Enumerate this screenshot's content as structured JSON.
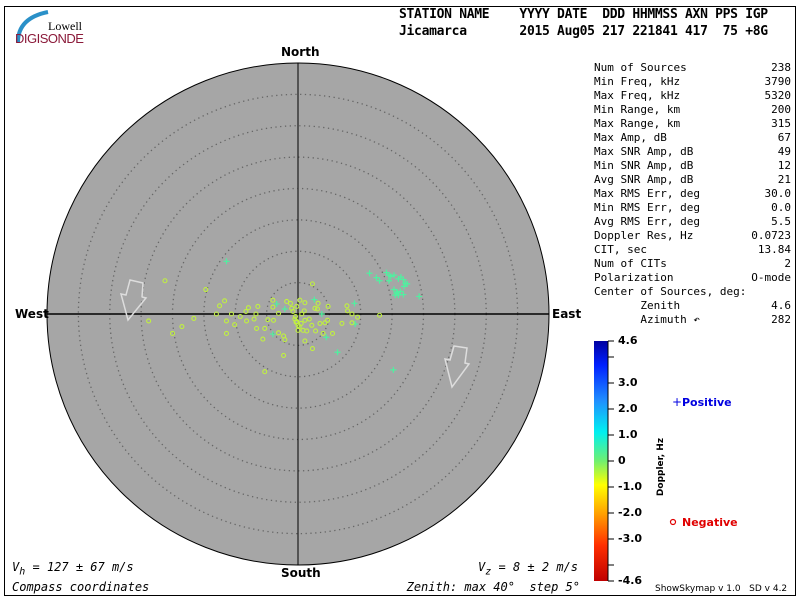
{
  "logo": {
    "line1": "Lowell",
    "line2": "DIGISONDE"
  },
  "header": {
    "columns": "STATION NAME    YYYY DATE  DDD HHMMSS AXN PPS IGP",
    "values": "Jicamarca       2015 Aug05 217 221841 417  75 +8G"
  },
  "stats": [
    {
      "label": "Num of Sources",
      "value": "238"
    },
    {
      "label": "Min Freq, kHz",
      "value": "3790"
    },
    {
      "label": "Max Freq, kHz",
      "value": "5320"
    },
    {
      "label": "Min Range, km",
      "value": "200"
    },
    {
      "label": "Max Range, km",
      "value": "315"
    },
    {
      "label": "Max Amp, dB",
      "value": "67"
    },
    {
      "label": "Max SNR Amp, dB",
      "value": "49"
    },
    {
      "label": "Min SNR Amp, dB",
      "value": "12"
    },
    {
      "label": "Avg SNR Amp, dB",
      "value": "21"
    },
    {
      "label": "Max RMS Err, deg",
      "value": "30.0"
    },
    {
      "label": "Min RMS Err, deg",
      "value": "0.0"
    },
    {
      "label": "Avg RMS Err, deg",
      "value": "5.5"
    },
    {
      "label": "Doppler Res, Hz",
      "value": "0.0723"
    },
    {
      "label": "CIT, sec",
      "value": "13.84"
    },
    {
      "label": "Num of CITs",
      "value": "2"
    },
    {
      "label": "Polarization",
      "value": "O-mode"
    },
    {
      "label": "Center of Sources, deg:",
      "value": ""
    },
    {
      "label": "       Zenith",
      "value": "4.6"
    },
    {
      "label": "       Azimuth ↶",
      "value": "282"
    }
  ],
  "compass": {
    "north": "North",
    "south": "South",
    "west": "West",
    "east": "East"
  },
  "footer": {
    "vh": "V",
    "vh_sub": "h",
    "vh_value": " = 127 ± 67 m/s",
    "vz": "V",
    "vz_sub": "z",
    "vz_value": " = 8 ± 2 m/s",
    "coords": "Compass coordinates",
    "zenith": "Zenith: max 40°  step 5°",
    "version": "ShowSkymap v 1.0   SD v 4.2"
  },
  "colorbar": {
    "label": "Doppler, Hz",
    "ticks": [
      "4.6",
      "3.0",
      "2.0",
      "1.0",
      "0",
      "-1.0",
      "-2.0",
      "-3.0",
      "-4.6"
    ],
    "range": [
      -4.6,
      4.6
    ]
  },
  "legend": {
    "positive": "Positive",
    "negative": "Negative",
    "positive_symbol": "+",
    "negative_symbol": "o"
  },
  "colors": {
    "plot_bg": "#a6a6a6",
    "positive_points": "#50f0a0",
    "negative_points": "#c0f040",
    "positive_text": "#0000e0",
    "negative_text": "#e00000",
    "logo_text": "#8b1a3a",
    "logo_arc": "#2a90c8"
  },
  "chart_data": {
    "type": "scatter",
    "coordinate_system": "polar skymap, compass coordinates (x = east, y = north, degrees from zenith)",
    "zenith_max": 40,
    "zenith_step": 5,
    "series": [
      {
        "name": "Positive",
        "marker": "plus",
        "points": [
          [
            -11.4,
            8.4
          ],
          [
            -3.4,
            1.6
          ],
          [
            -2.1,
            0.8
          ],
          [
            2.6,
            2.3
          ],
          [
            3.8,
            0.0
          ],
          [
            9.0,
            1.7
          ],
          [
            9.1,
            -1.6
          ],
          [
            4.5,
            -3.7
          ],
          [
            6.3,
            -6.1
          ],
          [
            15.2,
            -8.9
          ],
          [
            -4.0,
            -3.2
          ],
          [
            19.3,
            2.8
          ],
          [
            11.4,
            6.5
          ],
          [
            12.5,
            5.8
          ],
          [
            13.0,
            5.3
          ],
          [
            14.1,
            6.6
          ],
          [
            14.5,
            6.2
          ],
          [
            14.5,
            5.3
          ],
          [
            15.3,
            6.2
          ],
          [
            16.4,
            5.9
          ],
          [
            16.8,
            5.5
          ],
          [
            17.1,
            4.9
          ],
          [
            16.9,
            4.4
          ],
          [
            17.4,
            4.8
          ],
          [
            15.3,
            3.9
          ],
          [
            15.7,
            3.3
          ],
          [
            16.3,
            3.6
          ],
          [
            16.8,
            3.1
          ],
          [
            15.5,
            3.0
          ],
          [
            16.0,
            3.0
          ],
          [
            14.8,
            6.0
          ],
          [
            16.0,
            5.6
          ],
          [
            15.8,
            3.5
          ]
        ]
      },
      {
        "name": "Negative",
        "marker": "circle",
        "points": [
          [
            -21.2,
            5.3
          ],
          [
            -14.7,
            3.9
          ],
          [
            -23.8,
            -1.1
          ],
          [
            -20.0,
            -3.1
          ],
          [
            -18.5,
            -2.0
          ],
          [
            -16.6,
            -0.7
          ],
          [
            -13.0,
            0.0
          ],
          [
            -12.5,
            1.3
          ],
          [
            -11.7,
            2.1
          ],
          [
            -11.4,
            -1.1
          ],
          [
            -11.4,
            -3.1
          ],
          [
            -10.6,
            0.0
          ],
          [
            -10.1,
            -1.7
          ],
          [
            -9.2,
            -0.4
          ],
          [
            -8.3,
            0.4
          ],
          [
            -7.9,
            1.0
          ],
          [
            -8.2,
            -1.1
          ],
          [
            -7.0,
            -0.8
          ],
          [
            -6.7,
            0.0
          ],
          [
            -6.4,
            1.2
          ],
          [
            -6.6,
            -2.3
          ],
          [
            -5.6,
            -4.0
          ],
          [
            -5.3,
            -2.3
          ],
          [
            -4.8,
            -0.9
          ],
          [
            -4.0,
            2.2
          ],
          [
            -4.0,
            1.1
          ],
          [
            -3.9,
            -1.0
          ],
          [
            -3.1,
            0.1
          ],
          [
            -3.1,
            -3.0
          ],
          [
            -2.3,
            -3.5
          ],
          [
            -2.1,
            -4.1
          ],
          [
            -2.3,
            -6.6
          ],
          [
            -5.3,
            -9.2
          ],
          [
            -1.8,
            2.0
          ],
          [
            -1.2,
            1.7
          ],
          [
            -1.0,
            0.9
          ],
          [
            -0.2,
            1.2
          ],
          [
            -0.4,
            -0.4
          ],
          [
            -0.2,
            -1.2
          ],
          [
            0.0,
            -1.8
          ],
          [
            0.0,
            -2.6
          ],
          [
            0.3,
            2.2
          ],
          [
            1.1,
            1.8
          ],
          [
            1.0,
            0.5
          ],
          [
            1.1,
            -1.0
          ],
          [
            0.8,
            -2.6
          ],
          [
            1.4,
            -2.7
          ],
          [
            1.1,
            -4.3
          ],
          [
            2.3,
            4.8
          ],
          [
            2.3,
            -5.5
          ],
          [
            1.8,
            -0.8
          ],
          [
            2.2,
            -1.8
          ],
          [
            2.7,
            0.9
          ],
          [
            3.1,
            0.8
          ],
          [
            3.2,
            1.7
          ],
          [
            2.8,
            -2.7
          ],
          [
            3.5,
            -1.5
          ],
          [
            4.3,
            -1.4
          ],
          [
            4.7,
            -1.0
          ],
          [
            4.8,
            1.2
          ],
          [
            4.0,
            -3.1
          ],
          [
            5.5,
            -3.1
          ],
          [
            7.0,
            -1.5
          ],
          [
            7.8,
            1.3
          ],
          [
            7.9,
            0.5
          ],
          [
            8.6,
            0.0
          ],
          [
            8.6,
            -1.4
          ],
          [
            9.5,
            -0.5
          ],
          [
            13.0,
            -0.2
          ],
          [
            0.5,
            -1.5
          ],
          [
            -0.5,
            -0.8
          ],
          [
            0.6,
            0.0
          ],
          [
            -0.8,
            0.4
          ],
          [
            0.2,
            -2.0
          ],
          [
            -0.3,
            -1.3
          ]
        ]
      }
    ]
  }
}
